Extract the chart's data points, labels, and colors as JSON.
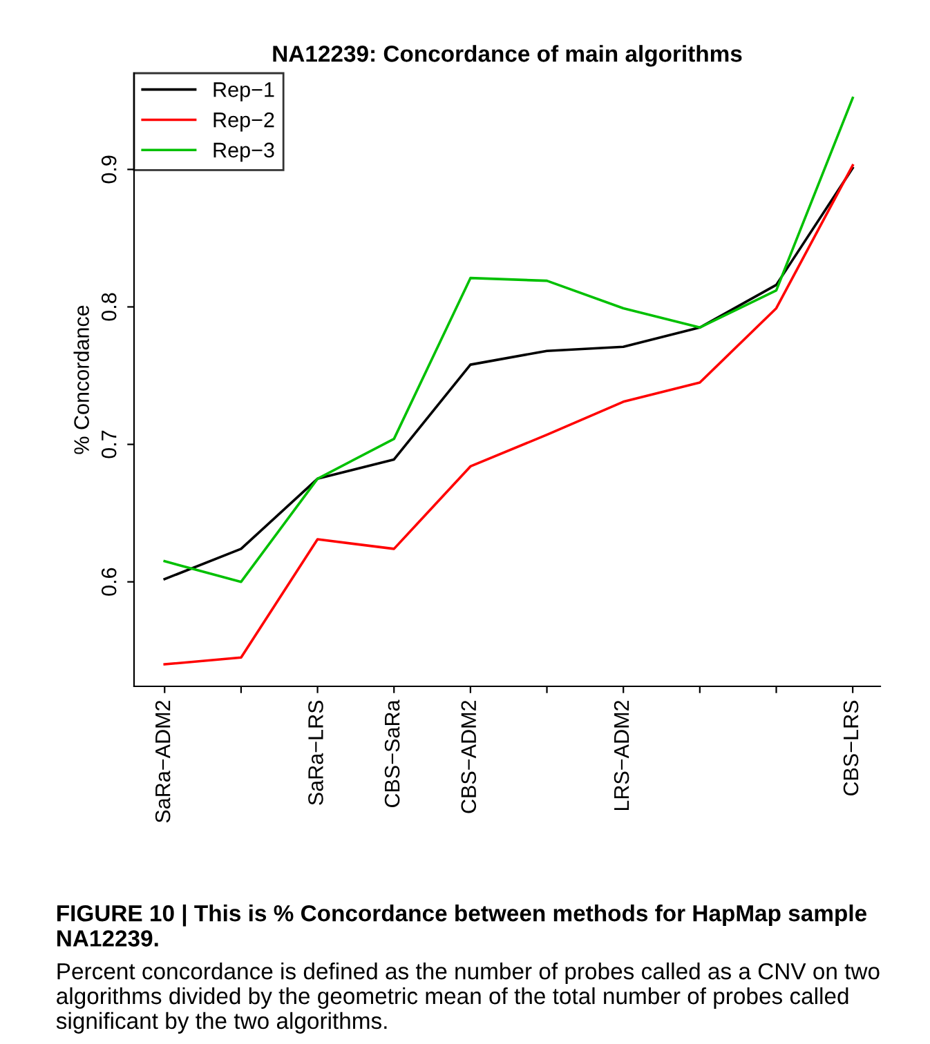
{
  "chart_data": {
    "type": "line",
    "title": "NA12239: Concordance of main algorithms",
    "ylabel": "% Concordance",
    "categories": [
      "SaRa−ADM2",
      null,
      "SaRa−LRS",
      "CBS−SaRa",
      "CBS−ADM2",
      null,
      "LRS−ADM2",
      null,
      null,
      "CBS−LRS"
    ],
    "series": [
      {
        "name": "Rep−1",
        "color": "#000000",
        "values": [
          0.602,
          0.624,
          0.675,
          0.689,
          0.758,
          0.768,
          0.771,
          0.785,
          0.816,
          0.901
        ]
      },
      {
        "name": "Rep−2",
        "color": "#ff0000",
        "values": [
          0.54,
          0.545,
          0.631,
          0.624,
          0.684,
          0.707,
          0.731,
          0.745,
          0.799,
          0.903
        ]
      },
      {
        "name": "Rep−3",
        "color": "#00c000",
        "values": [
          0.615,
          0.6,
          0.675,
          0.704,
          0.821,
          0.819,
          0.799,
          0.785,
          0.812,
          0.952
        ]
      }
    ],
    "ylim": [
      0.524,
      0.97
    ],
    "yticks": [
      0.6,
      0.7,
      0.8,
      0.9
    ],
    "grid": false,
    "legend": "top left",
    "marker": "none",
    "line_style": "solid",
    "annotations": [
      "FIGURE 10 | This is % Concordance between methods for HapMap sample NA12239.",
      "Percent concordance is defined as the number of probes called as a CNV on two algorithms divided by the geometric mean of the total number of probes called significant by the two algorithms."
    ]
  }
}
